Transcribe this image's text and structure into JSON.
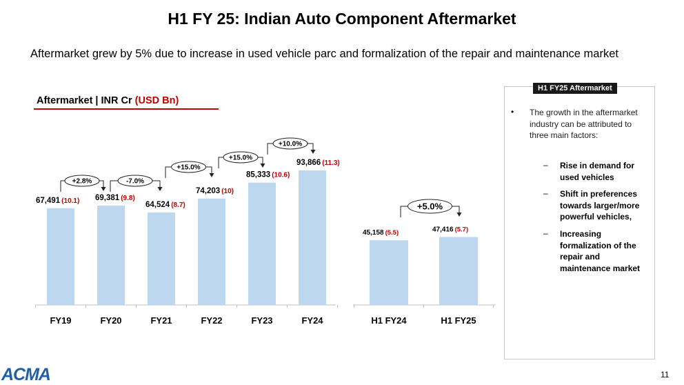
{
  "title": "H1 FY 25: Indian Auto Component Aftermarket",
  "subtitle": "Aftermarket grew by 5% due to increase in used vehicle parc and formalization of the repair and maintenance market",
  "chart_header": {
    "prefix": "Aftermarket | INR Cr ",
    "usd": "(USD Bn)"
  },
  "colors": {
    "bar": "#bdd7ee",
    "usd": "#c00000",
    "accent_line": "#c00000",
    "logo": "#1f5fa8"
  },
  "chart_data": [
    {
      "type": "bar",
      "categories": [
        "FY19",
        "FY20",
        "FY21",
        "FY22",
        "FY23",
        "FY24"
      ],
      "values": [
        67491,
        69381,
        64524,
        74203,
        85333,
        93866
      ],
      "value_labels": [
        "67,491",
        "69,381",
        "64,524",
        "74,203",
        "85,333",
        "93,866"
      ],
      "usd_labels": [
        "(10.1)",
        "(9.8)",
        "(8.7)",
        "(10)",
        "(10.6)",
        "(11.3)"
      ],
      "growth_labels": [
        "+2.8%",
        "-7.0%",
        "+15.0%",
        "+15.0%",
        "+10.0%"
      ]
    },
    {
      "type": "bar",
      "categories": [
        "H1 FY24",
        "H1 FY25"
      ],
      "values": [
        45158,
        47416
      ],
      "value_labels": [
        "45,158",
        "47,416"
      ],
      "usd_labels": [
        "(5.5)",
        "(5.7)"
      ],
      "growth_labels": [
        "+5.0%"
      ]
    }
  ],
  "sidebar": {
    "tab": "H1 FY25  Aftermarket",
    "bullet": "The growth in the aftermarket industry can be attributed to three main factors:",
    "factors": [
      "Rise in demand for used vehicles",
      "Shift in preferences towards larger/more powerful vehicles,",
      "Increasing formalization of the repair and maintenance market"
    ]
  },
  "logo": "ACMA",
  "page_number": "11"
}
